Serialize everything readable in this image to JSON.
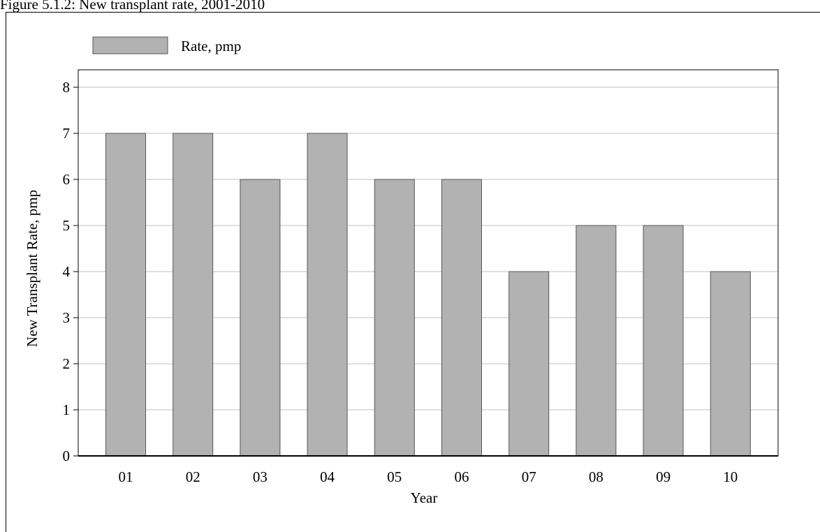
{
  "figure_title": "Figure 5.1.2: New transplant rate, 2001-2010",
  "colors": {
    "bar_fill": "#b2b2b2",
    "bar_stroke": "#555555",
    "grid": "#c0c0c0",
    "axis": "#000000"
  },
  "chart_data": {
    "type": "bar",
    "categories": [
      "01",
      "02",
      "03",
      "04",
      "05",
      "06",
      "07",
      "08",
      "09",
      "10"
    ],
    "series": [
      {
        "name": "Rate, pmp",
        "values": [
          7,
          7,
          6,
          7,
          6,
          6,
          4,
          5,
          5,
          4
        ]
      }
    ],
    "xlabel": "Year",
    "ylabel": "New Transplant Rate, pmp",
    "ylim": [
      0,
      8
    ],
    "yticks": [
      0,
      1,
      2,
      3,
      4,
      5,
      6,
      7,
      8
    ],
    "grid": true,
    "legend_position": "top-left"
  }
}
